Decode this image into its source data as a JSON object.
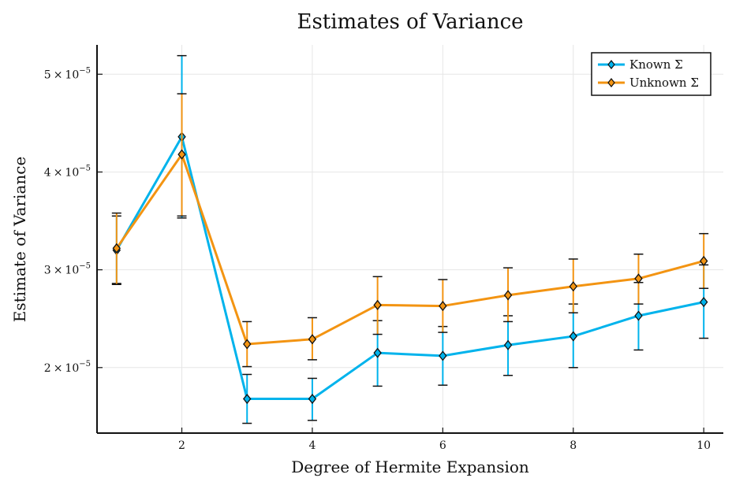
{
  "chart_data": {
    "type": "line",
    "title": "Estimates of Variance",
    "xlabel": "Degree of Hermite Expansion",
    "ylabel": "Estimate of Variance",
    "x": [
      1,
      2,
      3,
      4,
      5,
      6,
      7,
      8,
      9,
      10
    ],
    "xlim": [
      0.7,
      10.3
    ],
    "ylim": [
      1.33e-05,
      5.3e-05
    ],
    "xticks": [
      2,
      4,
      6,
      8,
      10
    ],
    "xtick_labels": [
      "2",
      "4",
      "6",
      "8",
      "10"
    ],
    "yticks": [
      2e-05,
      3e-05,
      4e-05,
      5e-05
    ],
    "ytick_mantissa": [
      "2",
      "3",
      "4",
      "5"
    ],
    "ytick_base": "10",
    "ytick_exponent": "−5",
    "ytick_times": "×",
    "grid": true,
    "legend_position": "top-right",
    "series": [
      {
        "name": "Known Σ",
        "color": "#00b3ec",
        "values": [
          3.2e-05,
          4.36e-05,
          1.68e-05,
          1.68e-05,
          2.15e-05,
          2.12e-05,
          2.23e-05,
          2.32e-05,
          2.53e-05,
          2.67e-05
        ],
        "err_low": [
          2.86e-05,
          3.53e-05,
          1.43e-05,
          1.46e-05,
          1.81e-05,
          1.82e-05,
          1.92e-05,
          2e-05,
          2.18e-05,
          2.3e-05
        ],
        "err_high": [
          3.55e-05,
          5.19e-05,
          1.93e-05,
          1.89e-05,
          2.48e-05,
          2.42e-05,
          2.53e-05,
          2.65e-05,
          2.87e-05,
          3.05e-05
        ]
      },
      {
        "name": "Unknown Σ",
        "color": "#f39412",
        "values": [
          3.22e-05,
          4.18e-05,
          2.24e-05,
          2.29e-05,
          2.64e-05,
          2.63e-05,
          2.74e-05,
          2.83e-05,
          2.91e-05,
          3.09e-05
        ],
        "err_low": [
          2.85e-05,
          3.55e-05,
          2.01e-05,
          2.08e-05,
          2.34e-05,
          2.36e-05,
          2.47e-05,
          2.56e-05,
          2.65e-05,
          2.81e-05
        ],
        "err_high": [
          3.58e-05,
          4.8e-05,
          2.47e-05,
          2.51e-05,
          2.93e-05,
          2.9e-05,
          3.02e-05,
          3.11e-05,
          3.16e-05,
          3.37e-05
        ]
      }
    ]
  }
}
